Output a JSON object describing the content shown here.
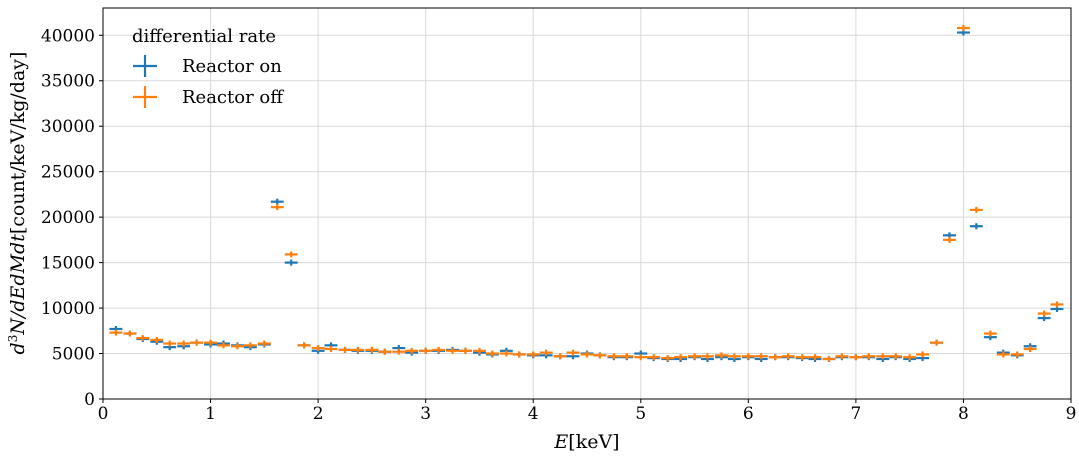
{
  "chart_data": {
    "type": "scatter",
    "title": "",
    "xlabel": "E[keV]",
    "ylabel": "d³N/dEdMdt[count/keV/kg/day]",
    "xlim": [
      0,
      9
    ],
    "ylim": [
      0,
      43000
    ],
    "x_ticks": [
      0,
      1,
      2,
      3,
      4,
      5,
      6,
      7,
      8,
      9
    ],
    "y_ticks": [
      0,
      5000,
      10000,
      15000,
      20000,
      25000,
      30000,
      35000,
      40000
    ],
    "grid": true,
    "legend": {
      "title": "differential rate",
      "position": "top-left"
    },
    "bin_halfwidth": 0.06,
    "series": [
      {
        "name": "Reactor on",
        "color": "#1f77b4",
        "x": [
          0.12,
          0.25,
          0.37,
          0.5,
          0.62,
          0.75,
          0.87,
          1.0,
          1.12,
          1.25,
          1.37,
          1.5,
          1.62,
          1.75,
          1.87,
          2.0,
          2.12,
          2.25,
          2.37,
          2.5,
          2.62,
          2.75,
          2.87,
          3.0,
          3.12,
          3.25,
          3.37,
          3.5,
          3.62,
          3.75,
          3.87,
          4.0,
          4.12,
          4.25,
          4.37,
          4.5,
          4.62,
          4.75,
          4.87,
          5.0,
          5.12,
          5.25,
          5.37,
          5.5,
          5.62,
          5.75,
          5.87,
          6.0,
          6.12,
          6.25,
          6.37,
          6.5,
          6.62,
          6.75,
          6.87,
          7.0,
          7.12,
          7.25,
          7.37,
          7.5,
          7.62,
          7.75,
          7.87,
          8.0,
          8.12,
          8.25,
          8.37,
          8.5,
          8.62,
          8.75,
          8.87
        ],
        "y": [
          7700,
          7200,
          6600,
          6300,
          5700,
          5800,
          6200,
          6000,
          6100,
          5900,
          5700,
          6000,
          21700,
          15000,
          5900,
          5300,
          5900,
          5400,
          5300,
          5300,
          5200,
          5600,
          5100,
          5300,
          5300,
          5400,
          5300,
          5100,
          4900,
          5300,
          4900,
          4800,
          4800,
          4700,
          4700,
          5000,
          4800,
          4600,
          4600,
          5000,
          4500,
          4400,
          4400,
          4600,
          4400,
          4600,
          4400,
          4600,
          4400,
          4600,
          4600,
          4500,
          4400,
          4400,
          4600,
          4600,
          4600,
          4400,
          4600,
          4400,
          4500,
          6200,
          18000,
          40300,
          19000,
          6800,
          5100,
          4800,
          5800,
          8900,
          9900
        ]
      },
      {
        "name": "Reactor off",
        "color": "#ff7f0e",
        "x": [
          0.12,
          0.25,
          0.37,
          0.5,
          0.62,
          0.75,
          0.87,
          1.0,
          1.12,
          1.25,
          1.37,
          1.5,
          1.62,
          1.75,
          1.87,
          2.0,
          2.12,
          2.25,
          2.37,
          2.5,
          2.62,
          2.75,
          2.87,
          3.0,
          3.12,
          3.25,
          3.37,
          3.5,
          3.62,
          3.75,
          3.87,
          4.0,
          4.12,
          4.25,
          4.37,
          4.5,
          4.62,
          4.75,
          4.87,
          5.0,
          5.12,
          5.25,
          5.37,
          5.5,
          5.62,
          5.75,
          5.87,
          6.0,
          6.12,
          6.25,
          6.37,
          6.5,
          6.62,
          6.75,
          6.87,
          7.0,
          7.12,
          7.25,
          7.37,
          7.5,
          7.62,
          7.75,
          7.87,
          8.0,
          8.12,
          8.25,
          8.37,
          8.5,
          8.62,
          8.75,
          8.87
        ],
        "y": [
          7300,
          7200,
          6700,
          6500,
          6100,
          6100,
          6200,
          6200,
          5900,
          5800,
          5900,
          6100,
          21100,
          15900,
          5900,
          5600,
          5500,
          5400,
          5400,
          5400,
          5200,
          5200,
          5300,
          5300,
          5400,
          5300,
          5300,
          5300,
          5000,
          5000,
          4900,
          4900,
          5100,
          4700,
          5100,
          4900,
          4800,
          4700,
          4700,
          4600,
          4600,
          4500,
          4600,
          4700,
          4700,
          4800,
          4700,
          4700,
          4700,
          4600,
          4700,
          4600,
          4600,
          4400,
          4700,
          4600,
          4700,
          4700,
          4700,
          4600,
          4900,
          6200,
          17500,
          40800,
          20800,
          7200,
          4900,
          4900,
          5500,
          9400,
          10400
        ]
      }
    ]
  }
}
